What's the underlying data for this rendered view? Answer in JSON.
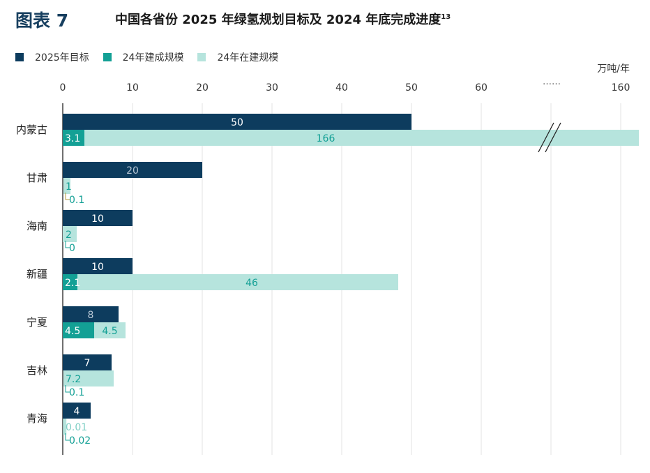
{
  "header": {
    "figure_label": "图表 7",
    "title": "中国各省份 2025 年绿氢规划目标及 2024 年底完成进度",
    "title_footnote": "13"
  },
  "chart_data": {
    "type": "bar",
    "orientation": "horizontal",
    "title": "中国各省份 2025 年绿氢规划目标及 2024 年底完成进度",
    "unit": "万吨/年",
    "categories": [
      "内蒙古",
      "甘肃",
      "海南",
      "新疆",
      "宁夏",
      "吉林",
      "青海"
    ],
    "series": [
      {
        "name": "2025年目标",
        "color": "#0d3c5e",
        "values": [
          50,
          20,
          10,
          10,
          8,
          7,
          4
        ],
        "labels": [
          "50",
          "20",
          "10",
          "10",
          "8",
          "7",
          "4"
        ]
      },
      {
        "name": "24年建成规模",
        "color": "#13a095",
        "values": [
          3.1,
          0.1,
          0,
          2.1,
          4.5,
          0.1,
          0.02
        ],
        "labels": [
          "3.1",
          "0.1",
          "0",
          "2.1",
          "4.5",
          "0.1",
          "0.02"
        ]
      },
      {
        "name": "24年在建规模",
        "color": "#b6e4dd",
        "values": [
          166,
          1,
          2,
          46,
          4.5,
          7.2,
          0.01
        ],
        "labels": [
          "166",
          "1",
          "2",
          "46",
          "4.5",
          "7.2",
          "0.01"
        ]
      }
    ],
    "x_ticks": [
      "0",
      "10",
      "20",
      "30",
      "40",
      "50",
      "60",
      "160"
    ],
    "axis_break_label": "……",
    "xlim": [
      0,
      70
    ],
    "axis_break": {
      "after": 70,
      "resume": 160
    }
  }
}
